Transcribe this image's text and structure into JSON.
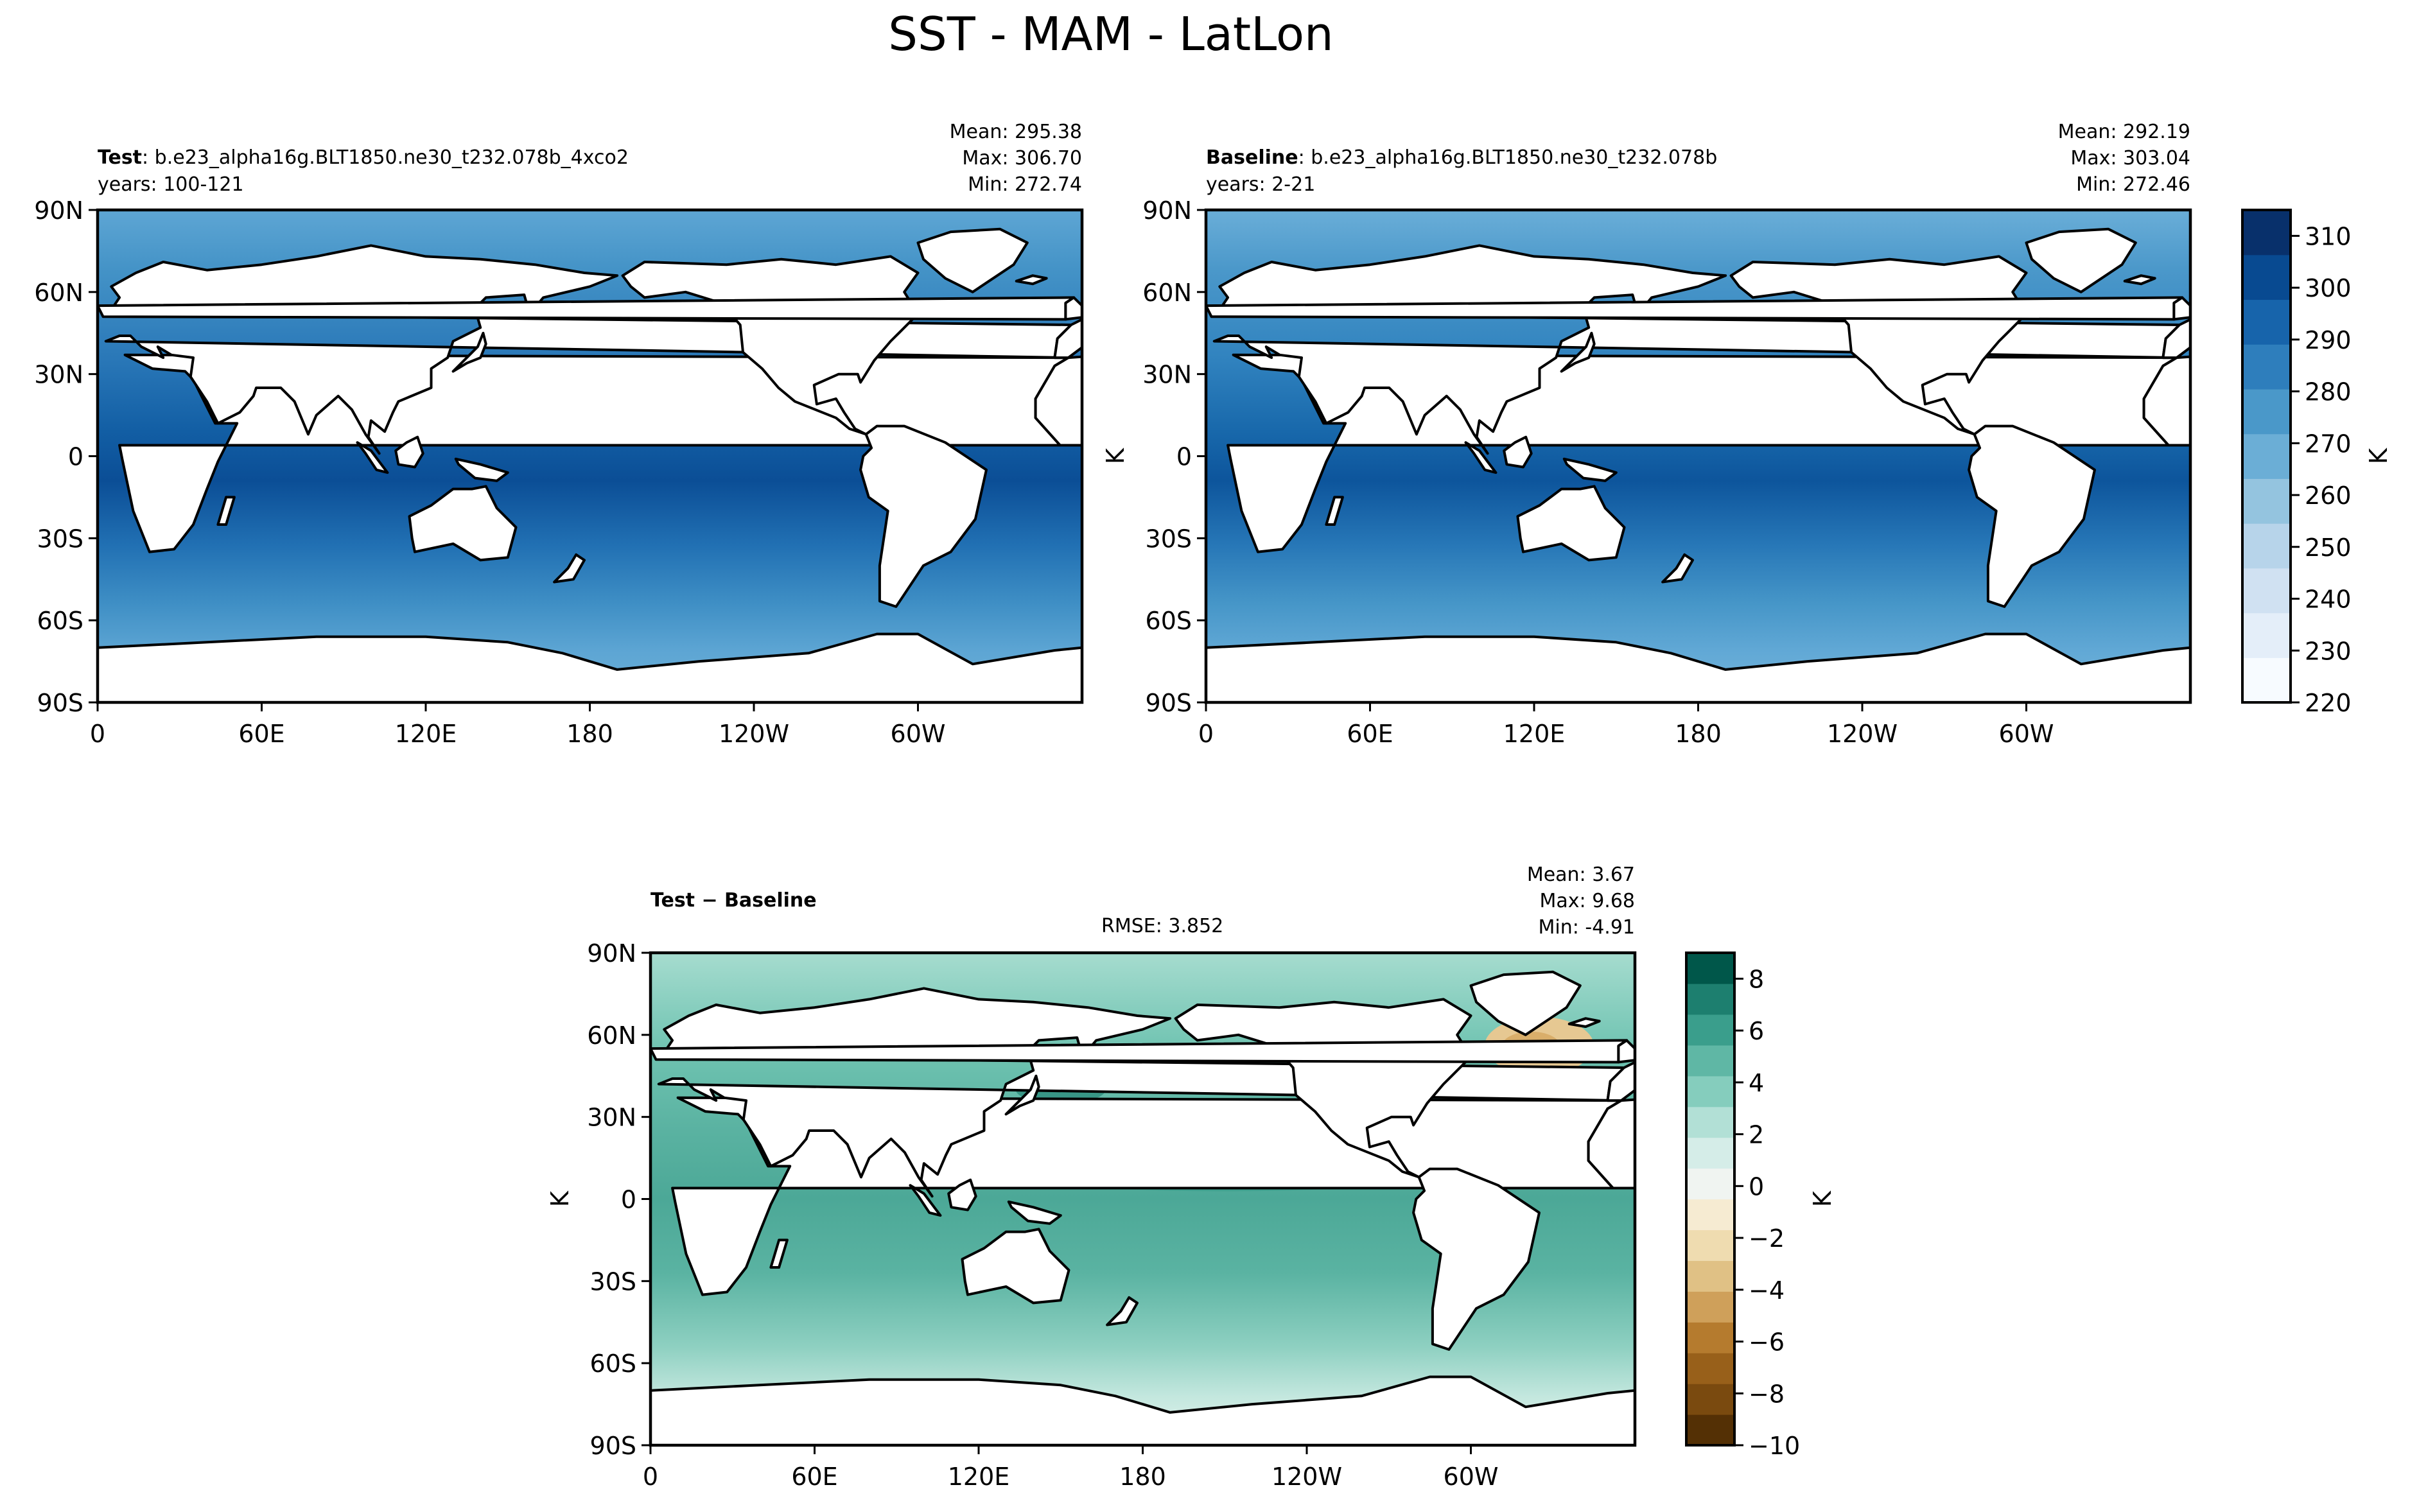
{
  "figure_title": "SST - MAM - LatLon",
  "chart_data": [
    {
      "id": "test",
      "type": "heatmap",
      "label_bold": "Test",
      "label_rest": ": b.e23_alpha16g.BLT1850.ne30_t232.078b_4xco2",
      "years": "years: 100-121",
      "stats": [
        "Mean: 295.38",
        "Max: 306.70",
        "Min: 272.74"
      ],
      "x_ticks": [
        "0",
        "60E",
        "120E",
        "180",
        "120W",
        "60W"
      ],
      "x_values": [
        0,
        60,
        120,
        180,
        240,
        300
      ],
      "xlim": [
        0,
        360
      ],
      "y_ticks": [
        "90N",
        "60N",
        "30N",
        "0",
        "30S",
        "60S",
        "90S"
      ],
      "y_values": [
        90,
        60,
        30,
        0,
        -30,
        -60,
        -90
      ],
      "ylim": [
        -90,
        90
      ],
      "units": "K"
    },
    {
      "id": "baseline",
      "type": "heatmap",
      "label_bold": "Baseline",
      "label_rest": ": b.e23_alpha16g.BLT1850.ne30_t232.078b",
      "years": "years: 2-21",
      "stats": [
        "Mean: 292.19",
        "Max: 303.04",
        "Min: 272.46"
      ],
      "x_ticks": [
        "0",
        "60E",
        "120E",
        "180",
        "120W",
        "60W"
      ],
      "x_values": [
        0,
        60,
        120,
        180,
        240,
        300
      ],
      "xlim": [
        0,
        360
      ],
      "y_ticks": [
        "90N",
        "60N",
        "30N",
        "0",
        "30S",
        "60S",
        "90S"
      ],
      "y_values": [
        90,
        60,
        30,
        0,
        -30,
        -60,
        -90
      ],
      "ylim": [
        -90,
        90
      ],
      "ylabel": "K",
      "colorbar": {
        "ticks": [
          "220",
          "230",
          "240",
          "250",
          "260",
          "270",
          "280",
          "290",
          "300",
          "310"
        ],
        "values": [
          220,
          230,
          240,
          250,
          260,
          270,
          280,
          290,
          300,
          310
        ],
        "range": [
          220,
          315
        ],
        "label": "K",
        "colors": [
          "#f7fbff",
          "#e4eef9",
          "#d0e1f2",
          "#b7d4ea",
          "#94c4df",
          "#6baed6",
          "#4a98c9",
          "#2e7ebc",
          "#1764ab",
          "#084a91",
          "#08306b"
        ]
      }
    },
    {
      "id": "diff",
      "type": "heatmap",
      "label_bold": "Test − Baseline",
      "rmse": "RMSE: 3.852",
      "stats": [
        "Mean:  3.67",
        "Max:  9.68",
        "Min: -4.91"
      ],
      "x_ticks": [
        "0",
        "60E",
        "120E",
        "180",
        "120W",
        "60W"
      ],
      "x_values": [
        0,
        60,
        120,
        180,
        240,
        300
      ],
      "xlim": [
        0,
        360
      ],
      "y_ticks": [
        "90N",
        "60N",
        "30N",
        "0",
        "30S",
        "60S",
        "90S"
      ],
      "y_values": [
        90,
        60,
        30,
        0,
        -30,
        -60,
        -90
      ],
      "ylim": [
        -90,
        90
      ],
      "ylabel": "K",
      "colorbar": {
        "ticks": [
          "8",
          "6",
          "4",
          "2",
          "0",
          "−2",
          "−4",
          "−6",
          "−8",
          "−10"
        ],
        "values": [
          8,
          6,
          4,
          2,
          0,
          -2,
          -4,
          -6,
          -8,
          -10
        ],
        "range": [
          -10,
          9
        ],
        "label": "K",
        "colors": [
          "#543005",
          "#7a4a0f",
          "#98601a",
          "#b57b2e",
          "#cfa05a",
          "#e0c185",
          "#efdcb0",
          "#f6ebd2",
          "#f0f4f1",
          "#d5ede8",
          "#b2e0d6",
          "#85cdbd",
          "#5fb7a5",
          "#3a9e8c",
          "#1d7f6f",
          "#00574a"
        ]
      }
    }
  ]
}
